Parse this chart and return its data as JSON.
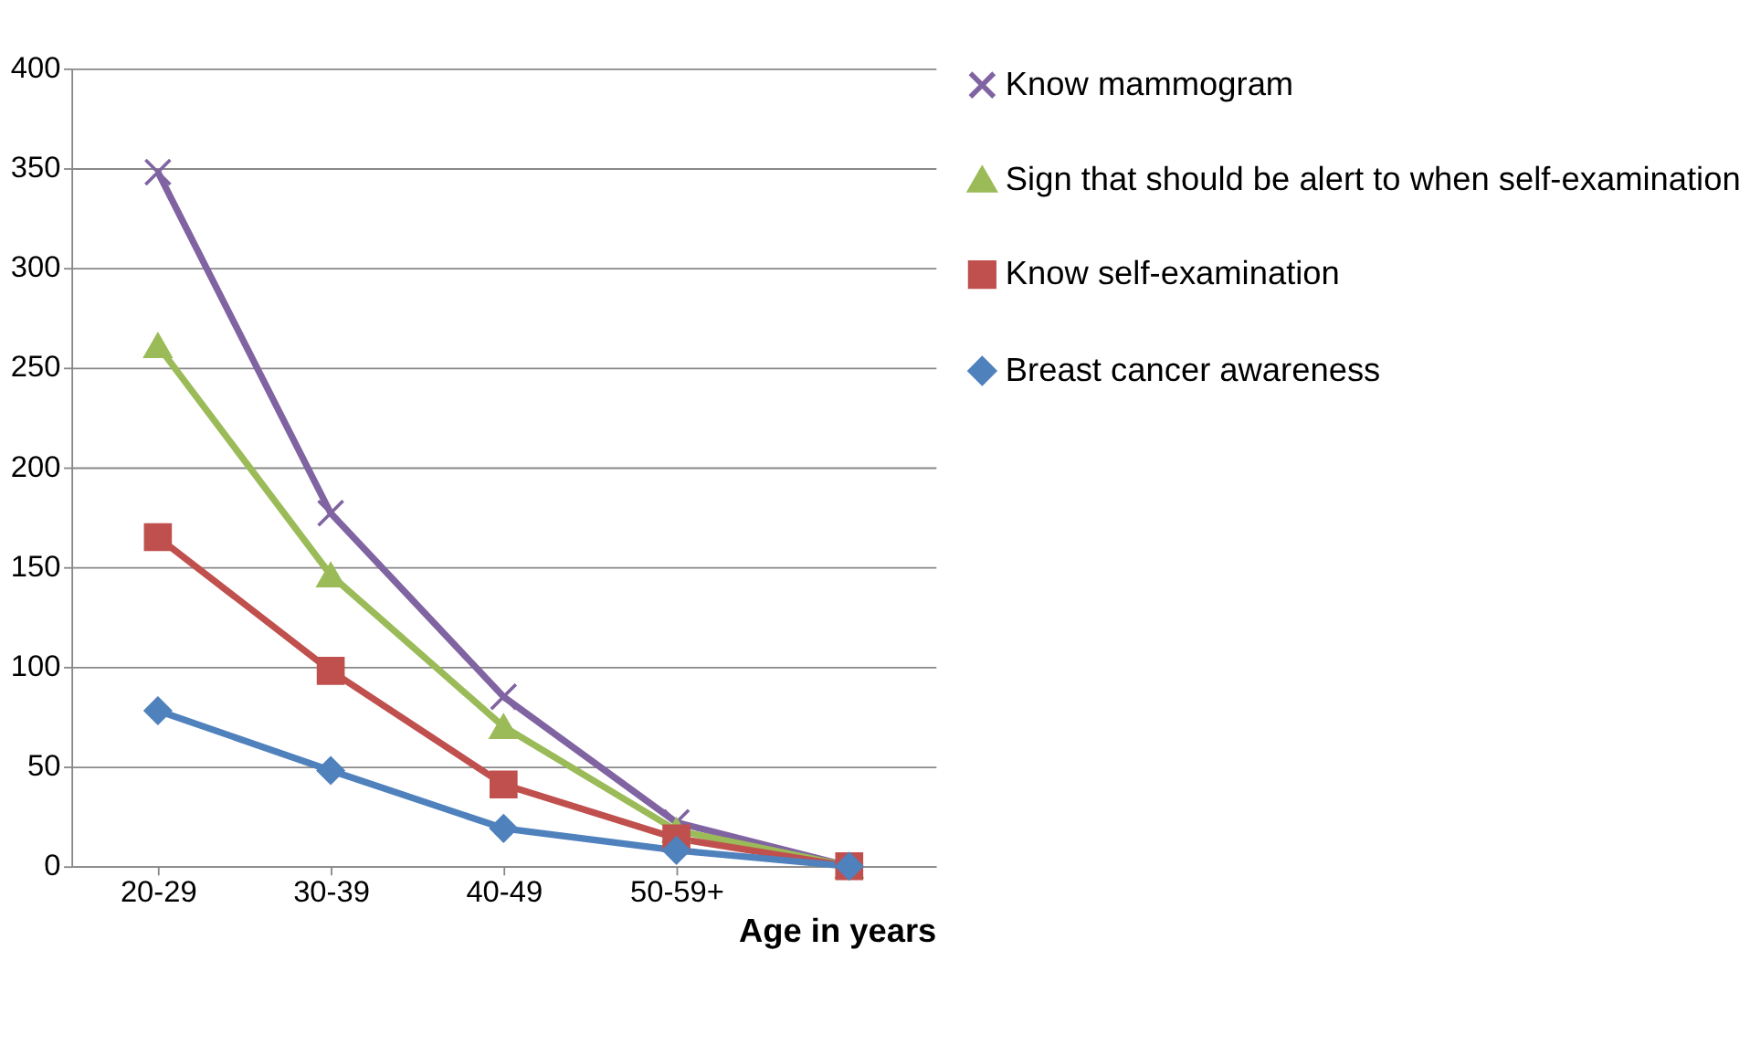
{
  "chart_data": {
    "type": "line",
    "xlabel": "Age in years",
    "categories": [
      "20-29",
      "30-39",
      "40-49",
      "50-59+",
      null
    ],
    "ylim": [
      0,
      400
    ],
    "yticks": [
      0,
      50,
      100,
      150,
      200,
      250,
      300,
      350,
      400
    ],
    "grid": "y",
    "legend": "right",
    "series": [
      {
        "name": "Know mammogram",
        "color": "#8064a2",
        "marker": "cross",
        "values": [
          348,
          177,
          85,
          22,
          0
        ]
      },
      {
        "name": "Sign that should be alert to when self-examination",
        "color": "#9bbb59",
        "marker": "triangle",
        "values": [
          261,
          146,
          70,
          18,
          0
        ]
      },
      {
        "name": "Know self-examination",
        "color": "#c0504d",
        "marker": "square",
        "values": [
          165,
          98,
          41,
          14,
          0
        ]
      },
      {
        "name": "Breast cancer awareness",
        "color": "#4f81bd",
        "marker": "diamond",
        "values": [
          78,
          48,
          19,
          8,
          0
        ]
      }
    ]
  }
}
